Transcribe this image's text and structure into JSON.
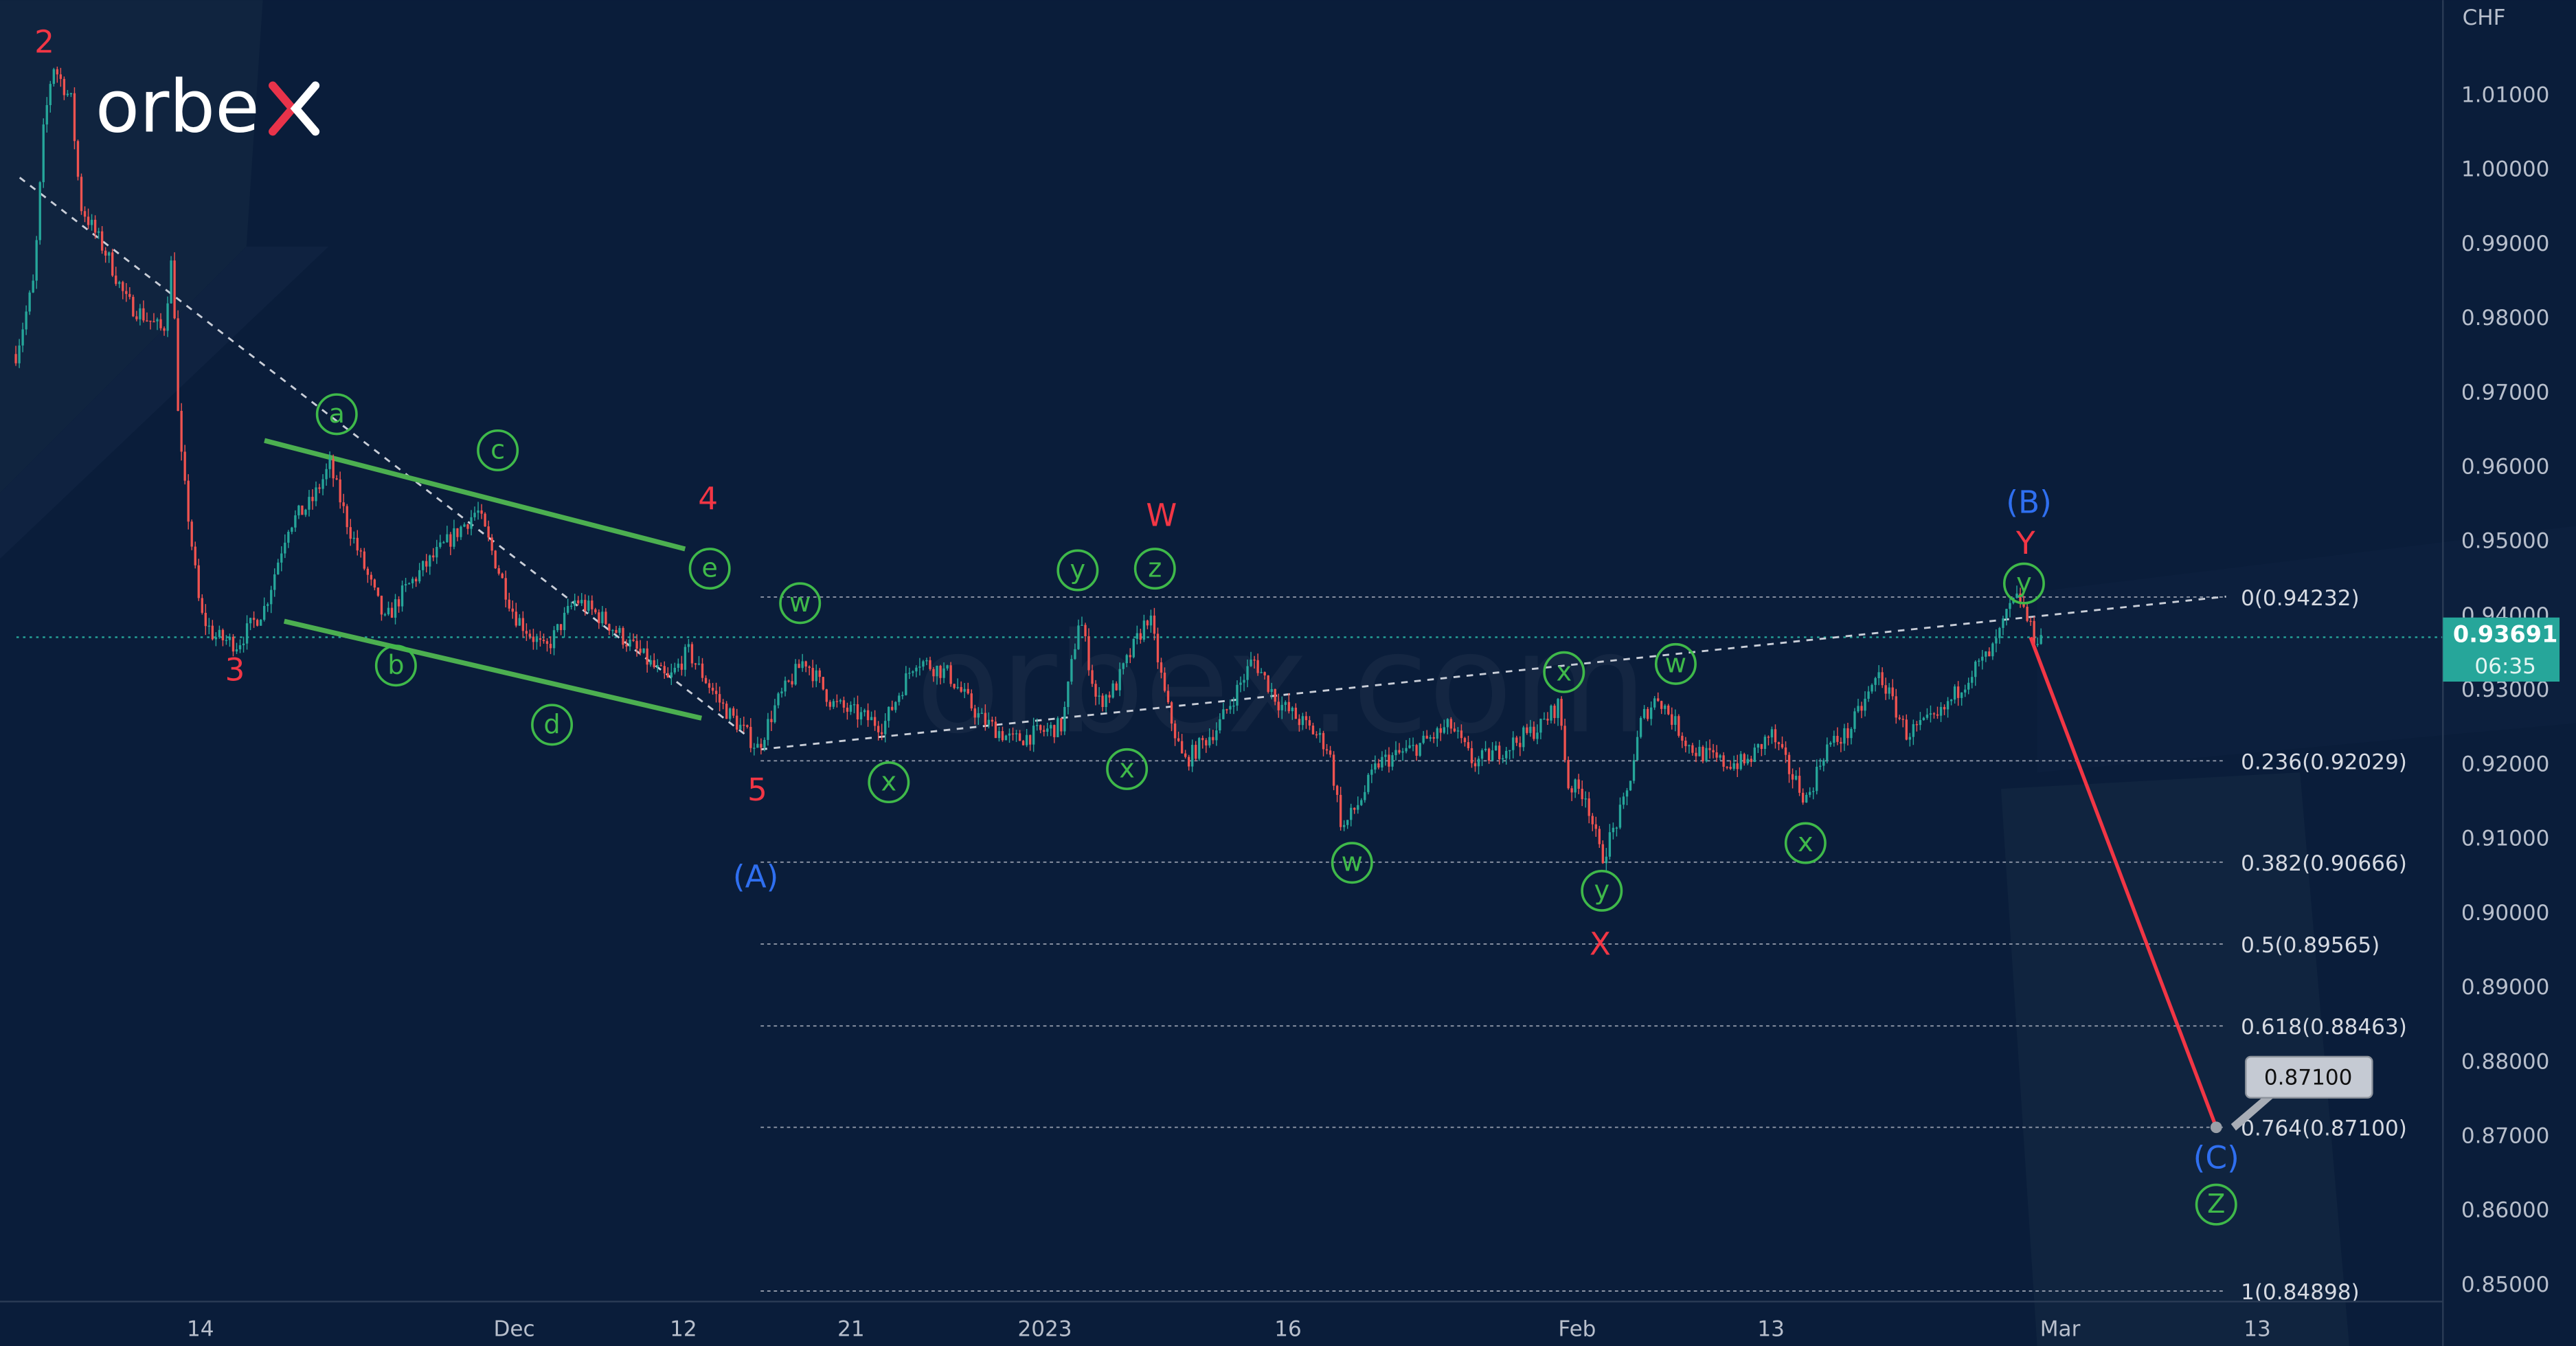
{
  "logo": {
    "text": "orbex",
    "watermark": "orbex.com"
  },
  "colors": {
    "background": "#0a1d3a",
    "up": "#26a69a",
    "down": "#ef5350",
    "wave_red": "#f23645",
    "wave_blue": "#2f6ff0",
    "wave_green": "#3fb94a",
    "channel": "#4caf50",
    "forecast": "#f23645",
    "price_tag": "#26a69a"
  },
  "chart_data": {
    "type": "candlestick",
    "currency": "CHF",
    "ylim": [
      0.845,
      1.0155
    ],
    "y_ticks": [
      "1.01000",
      "1.00000",
      "0.99000",
      "0.98000",
      "0.97000",
      "0.96000",
      "0.95000",
      "0.94000",
      "0.93000",
      "0.92000",
      "0.91000",
      "0.90000",
      "0.89000",
      "0.88000",
      "0.87000",
      "0.86000",
      "0.85000"
    ],
    "x_ticks": [
      {
        "date": "2022-11-14",
        "label": "14"
      },
      {
        "date": "2022-12-01",
        "label": "Dec"
      },
      {
        "date": "2022-12-12",
        "label": "12"
      },
      {
        "date": "2022-12-21",
        "label": "21"
      },
      {
        "date": "2023-01-02",
        "label": "2023"
      },
      {
        "date": "2023-01-16",
        "label": "16"
      },
      {
        "date": "2023-02-01",
        "label": "Feb"
      },
      {
        "date": "2023-02-13",
        "label": "13"
      },
      {
        "date": "2023-03-01",
        "label": "Mar"
      },
      {
        "date": "2023-03-13",
        "label": "13"
      }
    ],
    "price_path": [
      [
        "2022-11-04",
        0.975
      ],
      [
        "2022-11-05",
        0.985
      ],
      [
        "2022-11-05T12",
        1.005
      ],
      [
        "2022-11-06",
        1.014
      ],
      [
        "2022-11-07",
        1.009
      ],
      [
        "2022-11-07T12",
        0.995
      ],
      [
        "2022-11-09",
        0.988
      ],
      [
        "2022-11-10",
        0.982
      ],
      [
        "2022-11-12",
        0.978
      ],
      [
        "2022-11-12T12",
        0.989
      ],
      [
        "2022-11-12T18",
        0.968
      ],
      [
        "2022-11-13",
        0.96
      ],
      [
        "2022-11-14",
        0.94
      ],
      [
        "2022-11-14T18",
        0.937
      ],
      [
        "2022-11-16",
        0.936
      ],
      [
        "2022-11-17T12",
        0.941
      ],
      [
        "2022-11-18T18",
        0.952
      ],
      [
        "2022-11-20",
        0.955
      ],
      [
        "2022-11-21",
        0.96
      ],
      [
        "2022-11-22",
        0.952
      ],
      [
        "2022-11-24",
        0.939
      ],
      [
        "2022-11-25",
        0.943
      ],
      [
        "2022-11-26",
        0.946
      ],
      [
        "2022-11-29",
        0.954
      ],
      [
        "2022-12-01",
        0.94
      ],
      [
        "2022-12-03",
        0.935
      ],
      [
        "2022-12-05",
        0.942
      ],
      [
        "2022-12-07",
        0.939
      ],
      [
        "2022-12-09",
        0.935
      ],
      [
        "2022-12-11",
        0.931
      ],
      [
        "2022-12-12T06",
        0.935
      ],
      [
        "2022-12-14",
        0.928
      ],
      [
        "2022-12-15",
        0.925
      ],
      [
        "2022-12-16",
        0.922
      ],
      [
        "2022-12-17",
        0.928
      ],
      [
        "2022-12-18T12",
        0.934
      ],
      [
        "2022-12-20",
        0.928
      ],
      [
        "2022-12-23",
        0.925
      ],
      [
        "2022-12-25",
        0.934
      ],
      [
        "2022-12-27",
        0.932
      ],
      [
        "2022-12-29",
        0.926
      ],
      [
        "2022-12-31",
        0.923
      ],
      [
        "2023-01-03",
        0.925
      ],
      [
        "2023-01-04",
        0.94
      ],
      [
        "2023-01-05",
        0.928
      ],
      [
        "2023-01-06",
        0.93
      ],
      [
        "2023-01-08",
        0.94
      ],
      [
        "2023-01-09",
        0.928
      ],
      [
        "2023-01-10",
        0.92
      ],
      [
        "2023-01-12",
        0.925
      ],
      [
        "2023-01-14",
        0.934
      ],
      [
        "2023-01-15T12",
        0.928
      ],
      [
        "2023-01-17T12",
        0.924
      ],
      [
        "2023-01-18T06",
        0.922
      ],
      [
        "2023-01-19",
        0.911
      ],
      [
        "2023-01-20",
        0.915
      ],
      [
        "2023-01-21",
        0.92
      ],
      [
        "2023-01-23",
        0.922
      ],
      [
        "2023-01-25",
        0.925
      ],
      [
        "2023-01-26T06",
        0.92
      ],
      [
        "2023-01-28",
        0.922
      ],
      [
        "2023-01-30",
        0.925
      ],
      [
        "2023-01-31",
        0.928
      ],
      [
        "2023-01-31T12",
        0.917
      ],
      [
        "2023-02-01T12",
        0.916
      ],
      [
        "2023-02-02T12",
        0.907
      ],
      [
        "2023-02-04",
        0.915
      ],
      [
        "2023-02-05",
        0.926
      ],
      [
        "2023-02-06",
        0.929
      ],
      [
        "2023-02-08",
        0.922
      ],
      [
        "2023-02-10",
        0.92
      ],
      [
        "2023-02-11T12",
        0.92
      ],
      [
        "2023-02-13",
        0.924
      ],
      [
        "2023-02-14",
        0.919
      ],
      [
        "2023-02-15",
        0.915
      ],
      [
        "2023-02-16",
        0.922
      ],
      [
        "2023-02-17T06",
        0.924
      ],
      [
        "2023-02-19",
        0.932
      ],
      [
        "2023-02-20T12",
        0.924
      ],
      [
        "2023-02-22T06",
        0.926
      ],
      [
        "2023-02-24",
        0.932
      ],
      [
        "2023-02-25T06",
        0.935
      ],
      [
        "2023-02-26T06",
        0.941
      ],
      [
        "2023-02-26T18",
        0.9423
      ],
      [
        "2023-02-27T12",
        0.937
      ],
      [
        "2023-02-28",
        0.9369
      ]
    ],
    "last_price": {
      "value": "0.93691",
      "countdown": "06:35"
    },
    "fibonacci": [
      {
        "label": "0(0.94232)",
        "price": 0.94232
      },
      {
        "label": "0.236(0.92029)",
        "price": 0.92029
      },
      {
        "label": "0.382(0.90666)",
        "price": 0.90666
      },
      {
        "label": "0.5(0.89565)",
        "price": 0.89565
      },
      {
        "label": "0.618(0.88463)",
        "price": 0.88463
      },
      {
        "label": "0.764(0.87100)",
        "price": 0.871
      },
      {
        "label": "1(0.84898)",
        "price": 0.84898
      }
    ],
    "forecast": {
      "from": [
        "2023-02-28",
        0.9369
      ],
      "to": [
        "2023-03-10T12",
        0.871
      ],
      "target_label": "0.87100"
    },
    "wave_labels": {
      "red": [
        "2",
        "3",
        "4",
        "5",
        "W",
        "X",
        "Y"
      ],
      "blue": [
        "(A)",
        "(B)",
        "(C)"
      ],
      "green": [
        "a",
        "c",
        "e",
        "b",
        "d",
        "w",
        "x",
        "y",
        "z",
        "x",
        "w",
        "x",
        "y",
        "w",
        "x",
        "y",
        "Z"
      ]
    }
  }
}
